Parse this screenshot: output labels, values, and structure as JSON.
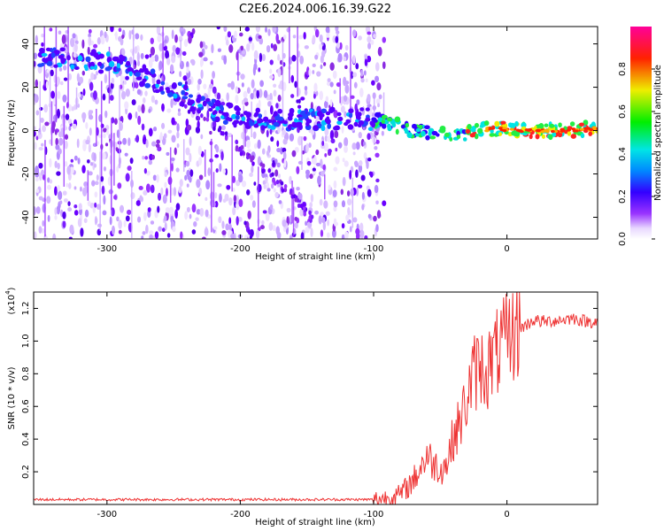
{
  "chart_data": [
    {
      "type": "heatmap",
      "title": "C2E6.2024.006.16.39.G22",
      "xlabel": "Height of straight line (km)",
      "ylabel": "Frequency (Hz)",
      "xlim": [
        -355,
        68
      ],
      "ylim": [
        -50,
        48
      ],
      "xticks": [
        -300,
        -200,
        -100,
        0
      ],
      "yticks": [
        -40,
        -20,
        0,
        20,
        40
      ],
      "xtick_labels": [
        "-300",
        "-200",
        "-100",
        "0"
      ],
      "ytick_labels": [
        "-40",
        "-20",
        "0",
        "20",
        "40"
      ],
      "colorbar": {
        "label": "Normalized spectral amplitude",
        "range": [
          0,
          1
        ],
        "ticks": [
          0.0,
          0.2,
          0.4,
          0.6,
          0.8
        ],
        "tick_labels": [
          "0.0",
          "0.2",
          "0.4",
          "0.6",
          "0.8"
        ],
        "colormap": "rainbow (white-purple-blue-cyan-green-yellow-red-magenta)"
      },
      "ridge_track": [
        {
          "x": -350,
          "y": 34
        },
        {
          "x": -320,
          "y": 33
        },
        {
          "x": -290,
          "y": 30
        },
        {
          "x": -260,
          "y": 22
        },
        {
          "x": -230,
          "y": 12
        },
        {
          "x": -200,
          "y": 6
        },
        {
          "x": -170,
          "y": 5
        },
        {
          "x": -140,
          "y": 5
        },
        {
          "x": -110,
          "y": 6
        },
        {
          "x": -90,
          "y": 4
        },
        {
          "x": -70,
          "y": 0
        },
        {
          "x": -50,
          "y": -2
        },
        {
          "x": -30,
          "y": -1
        },
        {
          "x": -10,
          "y": 1
        },
        {
          "x": 10,
          "y": 0
        },
        {
          "x": 40,
          "y": 0
        },
        {
          "x": 68,
          "y": 1
        }
      ],
      "secondary_track": [
        {
          "x": -250,
          "y": 16
        },
        {
          "x": -220,
          "y": 2
        },
        {
          "x": -190,
          "y": -14
        },
        {
          "x": -160,
          "y": -30
        },
        {
          "x": -145,
          "y": -42
        }
      ],
      "noise_region_xmax": -92
    },
    {
      "type": "line",
      "xlabel": "Height of straight line (km)",
      "ylabel": "SNR (10 * v/v)",
      "yscale_label": "(x10",
      "yscale_exp": "4",
      "xlim": [
        -355,
        68
      ],
      "ylim": [
        0,
        1.3
      ],
      "xticks": [
        -300,
        -200,
        -100,
        0
      ],
      "yticks": [
        0.2,
        0.4,
        0.6,
        0.8,
        1.0,
        1.2
      ],
      "xtick_labels": [
        "-300",
        "-200",
        "-100",
        "0"
      ],
      "ytick_labels": [
        "0.2",
        "0.4",
        "0.6",
        "0.8",
        "1.0",
        "1.2"
      ],
      "series": [
        {
          "color": "#ee3333",
          "x": [
            -355,
            -300,
            -250,
            -200,
            -150,
            -100,
            -90,
            -80,
            -70,
            -60,
            -55,
            -50,
            -45,
            -40,
            -35,
            -30,
            -25,
            -20,
            -15,
            -10,
            -5,
            0,
            5,
            10,
            15,
            20,
            25,
            30,
            40,
            50,
            60,
            68
          ],
          "y": [
            0.03,
            0.03,
            0.03,
            0.03,
            0.03,
            0.03,
            0.04,
            0.06,
            0.15,
            0.3,
            0.25,
            0.22,
            0.25,
            0.42,
            0.5,
            0.65,
            0.8,
            0.85,
            0.82,
            0.9,
            0.95,
            1.0,
            1.05,
            1.08,
            1.1,
            1.13,
            1.12,
            1.12,
            1.13,
            1.14,
            1.12,
            1.12
          ]
        }
      ]
    }
  ]
}
